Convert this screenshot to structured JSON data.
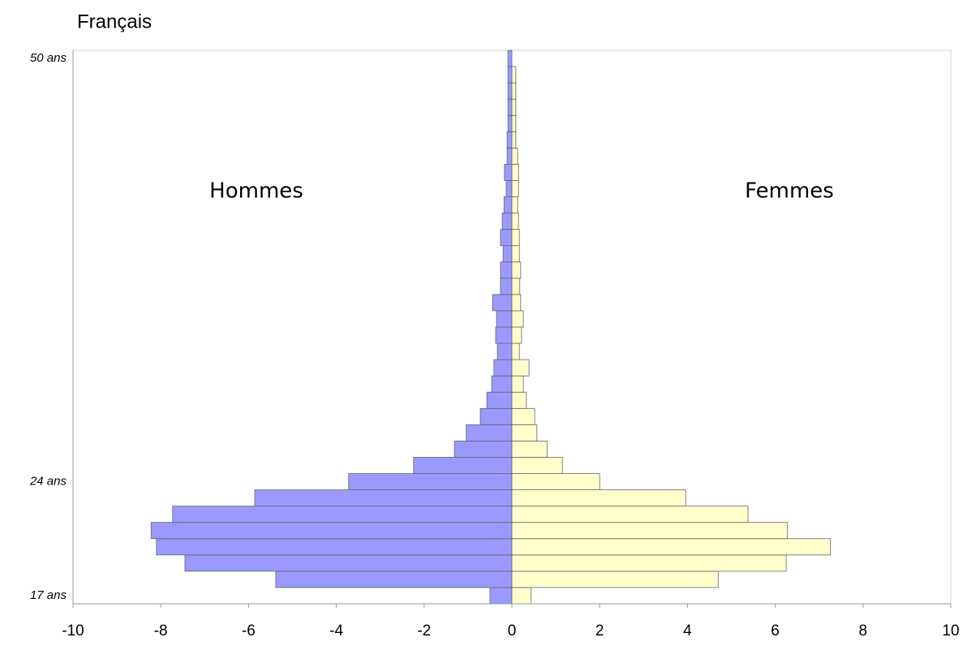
{
  "chart_data": {
    "type": "bar",
    "orientation": "horizontal",
    "title": "Français",
    "categories": [
      "17 ans",
      null,
      null,
      null,
      null,
      null,
      null,
      "24 ans",
      null,
      null,
      null,
      null,
      null,
      null,
      null,
      null,
      null,
      null,
      null,
      null,
      null,
      null,
      null,
      null,
      null,
      null,
      null,
      null,
      null,
      null,
      null,
      null,
      null,
      "50 ans"
    ],
    "series": [
      {
        "name": "Hommes",
        "color": "#9999ff",
        "values": [
          -0.5,
          -5.38,
          -7.45,
          -8.1,
          -8.22,
          -7.73,
          -5.86,
          -3.72,
          -2.24,
          -1.31,
          -1.04,
          -0.72,
          -0.57,
          -0.46,
          -0.41,
          -0.33,
          -0.37,
          -0.35,
          -0.44,
          -0.26,
          -0.26,
          -0.2,
          -0.26,
          -0.22,
          -0.18,
          -0.13,
          -0.17,
          -0.11,
          -0.11,
          -0.09,
          -0.09,
          -0.09,
          -0.09,
          -0.09
        ]
      },
      {
        "name": "Femmes",
        "color": "#ffffcc",
        "values": [
          0.44,
          4.7,
          6.25,
          7.26,
          6.28,
          5.38,
          3.96,
          2.0,
          1.15,
          0.8,
          0.57,
          0.52,
          0.33,
          0.26,
          0.39,
          0.17,
          0.22,
          0.26,
          0.2,
          0.18,
          0.2,
          0.17,
          0.17,
          0.15,
          0.13,
          0.15,
          0.15,
          0.13,
          0.09,
          0.09,
          0.09,
          0.09,
          0.09,
          0
        ]
      }
    ],
    "xlim": [
      -10,
      10
    ],
    "xticks": [
      -10,
      -8,
      -6,
      -4,
      -2,
      0,
      2,
      4,
      6,
      8,
      10
    ]
  }
}
